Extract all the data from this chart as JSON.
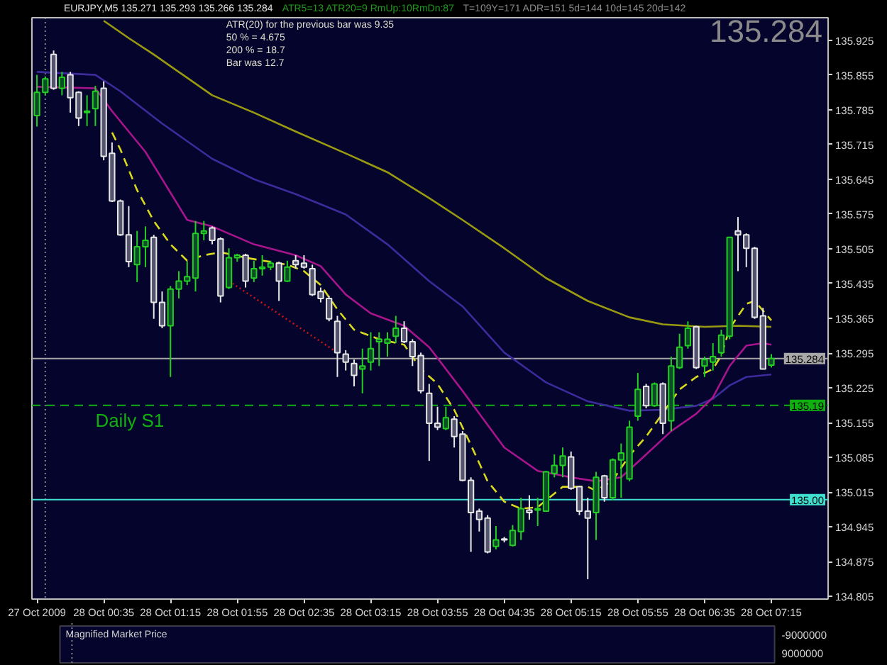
{
  "chart_data": {
    "type": "candlestick",
    "title": "EURJPY,M5  135.271 135.293 135.266 135.284",
    "x": [
      "2009-10-27T23:55",
      "2009-10-28T00:00",
      "2009-10-28T00:05",
      "2009-10-28T00:10",
      "2009-10-28T00:15",
      "2009-10-28T00:20",
      "2009-10-28T00:25",
      "2009-10-28T00:30",
      "2009-10-28T00:35",
      "2009-10-28T00:40",
      "2009-10-28T00:45",
      "2009-10-28T00:50",
      "2009-10-28T00:55",
      "2009-10-28T01:00",
      "2009-10-28T01:05",
      "2009-10-28T01:10",
      "2009-10-28T01:15",
      "2009-10-28T01:20",
      "2009-10-28T01:25",
      "2009-10-28T01:30",
      "2009-10-28T01:35",
      "2009-10-28T01:40",
      "2009-10-28T01:45",
      "2009-10-28T01:50",
      "2009-10-28T01:55",
      "2009-10-28T02:00",
      "2009-10-28T02:05",
      "2009-10-28T02:10",
      "2009-10-28T02:15",
      "2009-10-28T02:20",
      "2009-10-28T02:25",
      "2009-10-28T02:30",
      "2009-10-28T02:35",
      "2009-10-28T02:40",
      "2009-10-28T02:45",
      "2009-10-28T02:50",
      "2009-10-28T02:55",
      "2009-10-28T03:00",
      "2009-10-28T03:05",
      "2009-10-28T03:10",
      "2009-10-28T03:15",
      "2009-10-28T03:20",
      "2009-10-28T03:25",
      "2009-10-28T03:30",
      "2009-10-28T03:35",
      "2009-10-28T03:40",
      "2009-10-28T03:45",
      "2009-10-28T03:50",
      "2009-10-28T03:55",
      "2009-10-28T04:00",
      "2009-10-28T04:05",
      "2009-10-28T04:10",
      "2009-10-28T04:15",
      "2009-10-28T04:20",
      "2009-10-28T04:25",
      "2009-10-28T04:30",
      "2009-10-28T04:35",
      "2009-10-28T04:40",
      "2009-10-28T04:45",
      "2009-10-28T04:50",
      "2009-10-28T04:55",
      "2009-10-28T05:00",
      "2009-10-28T05:05",
      "2009-10-28T05:10",
      "2009-10-28T05:15",
      "2009-10-28T05:20",
      "2009-10-28T05:25",
      "2009-10-28T05:30",
      "2009-10-28T05:35",
      "2009-10-28T05:40",
      "2009-10-28T05:45",
      "2009-10-28T05:50",
      "2009-10-28T05:55",
      "2009-10-28T06:00",
      "2009-10-28T06:05",
      "2009-10-28T06:10",
      "2009-10-28T06:15",
      "2009-10-28T06:20",
      "2009-10-28T06:25",
      "2009-10-28T06:30",
      "2009-10-28T06:35",
      "2009-10-28T06:40",
      "2009-10-28T06:45",
      "2009-10-28T06:50",
      "2009-10-28T06:55",
      "2009-10-28T07:00",
      "2009-10-28T07:05",
      "2009-10-28T07:10",
      "2009-10-28T07:15"
    ],
    "ohlc": [
      [
        135.773,
        135.855,
        135.751,
        135.82
      ],
      [
        135.82,
        135.852,
        135.814,
        135.847
      ],
      [
        135.896,
        135.904,
        135.825,
        135.828
      ],
      [
        135.828,
        135.861,
        135.814,
        135.85
      ],
      [
        135.855,
        135.861,
        135.779,
        135.809
      ],
      [
        135.82,
        135.822,
        135.752,
        135.768
      ],
      [
        135.779,
        135.814,
        135.752,
        135.782
      ],
      [
        135.787,
        135.833,
        135.752,
        135.822
      ],
      [
        135.828,
        135.842,
        135.683,
        135.691
      ],
      [
        135.697,
        135.719,
        135.599,
        135.601
      ],
      [
        135.601,
        135.604,
        135.531,
        135.533
      ],
      [
        135.533,
        135.591,
        135.468,
        135.479
      ],
      [
        135.473,
        135.541,
        135.438,
        135.509
      ],
      [
        135.509,
        135.55,
        135.468,
        135.522
      ],
      [
        135.528,
        135.533,
        135.364,
        135.397
      ],
      [
        135.397,
        135.419,
        135.345,
        135.35
      ],
      [
        135.35,
        135.43,
        135.247,
        135.424
      ],
      [
        135.424,
        135.46,
        135.405,
        135.44
      ],
      [
        135.44,
        135.479,
        135.432,
        135.449
      ],
      [
        135.446,
        135.561,
        135.419,
        135.536
      ],
      [
        135.536,
        135.561,
        135.522,
        135.541
      ],
      [
        135.547,
        135.55,
        135.514,
        135.522
      ],
      [
        135.525,
        135.528,
        135.397,
        135.41
      ],
      [
        135.427,
        135.506,
        135.424,
        135.487
      ],
      [
        135.487,
        135.495,
        135.479,
        135.492
      ],
      [
        135.492,
        135.495,
        135.427,
        135.44
      ],
      [
        135.446,
        135.481,
        135.438,
        135.465
      ],
      [
        135.465,
        135.492,
        135.451,
        135.468
      ],
      [
        135.468,
        135.481,
        135.462,
        135.476
      ],
      [
        135.476,
        135.479,
        135.4,
        135.44
      ],
      [
        135.44,
        135.481,
        135.438,
        135.468
      ],
      [
        135.481,
        135.492,
        135.465,
        135.473
      ],
      [
        135.476,
        135.492,
        135.465,
        135.468
      ],
      [
        135.465,
        135.473,
        135.41,
        135.413
      ],
      [
        135.419,
        135.427,
        135.397,
        135.405
      ],
      [
        135.405,
        135.41,
        135.359,
        135.364
      ],
      [
        135.359,
        135.37,
        135.247,
        135.296
      ],
      [
        135.293,
        135.301,
        135.26,
        135.277
      ],
      [
        135.274,
        135.282,
        135.228,
        135.25
      ],
      [
        135.263,
        135.304,
        135.214,
        135.269
      ],
      [
        135.277,
        135.337,
        135.26,
        135.304
      ],
      [
        135.318,
        135.337,
        135.269,
        135.323
      ],
      [
        135.315,
        135.337,
        135.288,
        135.323
      ],
      [
        135.329,
        135.37,
        135.315,
        135.345
      ],
      [
        135.345,
        135.359,
        135.315,
        135.318
      ],
      [
        135.318,
        135.323,
        135.269,
        135.288
      ],
      [
        135.29,
        135.296,
        135.214,
        135.219
      ],
      [
        135.214,
        135.233,
        135.078,
        135.154
      ],
      [
        135.154,
        135.187,
        135.14,
        135.146
      ],
      [
        135.143,
        135.187,
        135.14,
        135.165
      ],
      [
        135.162,
        135.168,
        135.105,
        135.127
      ],
      [
        135.132,
        135.138,
        135.037,
        135.039
      ],
      [
        135.039,
        135.045,
        134.895,
        134.974
      ],
      [
        134.977,
        134.982,
        134.936,
        134.96
      ],
      [
        134.963,
        134.969,
        134.892,
        134.895
      ],
      [
        134.906,
        134.947,
        134.9,
        134.919
      ],
      [
        134.921,
        134.925,
        134.914,
        134.919
      ],
      [
        134.908,
        134.949,
        134.906,
        134.938
      ],
      [
        134.936,
        135.004,
        134.919,
        134.982
      ],
      [
        134.979,
        135.009,
        134.96,
        134.974
      ],
      [
        134.979,
        135.004,
        134.947,
        134.982
      ],
      [
        134.977,
        135.058,
        134.977,
        135.056
      ],
      [
        135.053,
        135.091,
        135.045,
        135.069
      ],
      [
        135.069,
        135.105,
        135.045,
        135.088
      ],
      [
        135.086,
        135.097,
        135.02,
        135.023
      ],
      [
        135.026,
        135.028,
        134.969,
        134.977
      ],
      [
        134.977,
        135.004,
        134.84,
        134.963
      ],
      [
        134.974,
        135.056,
        134.919,
        135.045
      ],
      [
        135.048,
        135.05,
        134.996,
        135.004
      ],
      [
        135.004,
        135.083,
        134.999,
        135.08
      ],
      [
        135.08,
        135.113,
        135.004,
        135.094
      ],
      [
        135.042,
        135.159,
        135.037,
        135.146
      ],
      [
        135.168,
        135.255,
        135.159,
        135.222
      ],
      [
        135.228,
        135.233,
        135.184,
        135.189
      ],
      [
        135.189,
        135.236,
        135.187,
        135.233
      ],
      [
        135.233,
        135.236,
        135.132,
        135.154
      ],
      [
        135.159,
        135.288,
        135.138,
        135.269
      ],
      [
        135.266,
        135.334,
        135.263,
        135.307
      ],
      [
        135.31,
        135.359,
        135.304,
        135.345
      ],
      [
        135.348,
        135.35,
        135.263,
        135.266
      ],
      [
        135.269,
        135.288,
        135.247,
        135.282
      ],
      [
        135.277,
        135.315,
        135.26,
        135.288
      ],
      [
        135.296,
        135.342,
        135.288,
        135.331
      ],
      [
        135.329,
        135.528,
        135.323,
        135.528
      ],
      [
        135.541,
        135.569,
        135.46,
        135.533
      ],
      [
        135.533,
        135.536,
        135.468,
        135.506
      ],
      [
        135.506,
        135.509,
        135.364,
        135.367
      ],
      [
        135.37,
        135.386,
        135.263,
        135.263
      ],
      [
        135.271,
        135.293,
        135.266,
        135.284
      ]
    ],
    "colors": [
      "#22d022",
      "#22d022",
      "#e8e8e8",
      "#22d022",
      "#e8e8e8",
      "#e8e8e8",
      "#22d022",
      "#22d022",
      "#e8e8e8",
      "#e8e8e8",
      "#e8e8e8",
      "#e8e8e8",
      "#22d022",
      "#22d022",
      "#e8e8e8",
      "#e8e8e8",
      "#22d022",
      "#22d022",
      "#22d022",
      "#22d022",
      "#22d022",
      "#e8e8e8",
      "#e8e8e8",
      "#22d022",
      "#22d022",
      "#e8e8e8",
      "#22d022",
      "#22d022",
      "#22d022",
      "#e8e8e8",
      "#22d022",
      "#e8e8e8",
      "#e8e8e8",
      "#e8e8e8",
      "#e8e8e8",
      "#e8e8e8",
      "#e8e8e8",
      "#e8e8e8",
      "#e8e8e8",
      "#22d022",
      "#22d022",
      "#22d022",
      "#22d022",
      "#22d022",
      "#e8e8e8",
      "#e8e8e8",
      "#e8e8e8",
      "#e8e8e8",
      "#e8e8e8",
      "#22d022",
      "#e8e8e8",
      "#e8e8e8",
      "#e8e8e8",
      "#e8e8e8",
      "#e8e8e8",
      "#22d022",
      "#e8e8e8",
      "#22d022",
      "#22d022",
      "#e8e8e8",
      "#22d022",
      "#22d022",
      "#22d022",
      "#22d022",
      "#e8e8e8",
      "#e8e8e8",
      "#e8e8e8",
      "#22d022",
      "#e8e8e8",
      "#22d022",
      "#22d022",
      "#22d022",
      "#22d022",
      "#e8e8e8",
      "#22d022",
      "#e8e8e8",
      "#22d022",
      "#22d022",
      "#22d022",
      "#e8e8e8",
      "#22d022",
      "#22d022",
      "#22d022",
      "#22d022",
      "#e8e8e8",
      "#e8e8e8",
      "#e8e8e8",
      "#e8e8e8",
      "#22d022"
    ],
    "series": [
      {
        "type": "line",
        "color": "#9a9a12",
        "x": [
          "2009-10-28T00:35",
          "2009-10-28T00:50",
          "2009-10-28T01:05",
          "2009-10-28T01:40",
          "2009-10-28T02:05",
          "2009-10-28T02:30",
          "2009-10-28T03:00",
          "2009-10-28T03:25",
          "2009-10-28T03:50",
          "2009-10-28T04:10",
          "2009-10-28T04:35",
          "2009-10-28T05:00",
          "2009-10-28T05:25",
          "2009-10-28T05:50",
          "2009-10-28T06:10",
          "2009-10-28T06:35",
          "2009-10-28T06:55",
          "2009-10-28T07:15"
        ],
        "values": [
          135.964,
          135.929,
          135.896,
          135.814,
          135.779,
          135.741,
          135.697,
          135.659,
          135.607,
          135.563,
          135.506,
          135.446,
          135.4,
          135.367,
          135.353,
          135.348,
          135.35,
          135.348
        ]
      },
      {
        "type": "line",
        "color": "#3d2b9c",
        "x": [
          "2009-10-27T23:55",
          "2009-10-28T00:30",
          "2009-10-28T00:45",
          "2009-10-28T01:10",
          "2009-10-28T01:40",
          "2009-10-28T02:05",
          "2009-10-28T02:30",
          "2009-10-28T03:00",
          "2009-10-28T03:25",
          "2009-10-28T03:50",
          "2009-10-28T04:10",
          "2009-10-28T04:35",
          "2009-10-28T05:00",
          "2009-10-28T05:25",
          "2009-10-28T05:50",
          "2009-10-28T06:10",
          "2009-10-28T06:30",
          "2009-10-28T06:40",
          "2009-10-28T06:50",
          "2009-10-28T07:00",
          "2009-10-28T07:15"
        ],
        "values": [
          135.861,
          135.855,
          135.822,
          135.757,
          135.686,
          135.645,
          135.615,
          135.574,
          135.514,
          135.44,
          135.389,
          135.296,
          135.236,
          135.198,
          135.179,
          135.181,
          135.189,
          135.203,
          135.23,
          135.247,
          135.252
        ]
      },
      {
        "type": "line",
        "color": "#a8148c",
        "x": [
          "2009-10-27T23:55",
          "2009-10-28T00:30",
          "2009-10-28T00:40",
          "2009-10-28T01:00",
          "2009-10-28T01:15",
          "2009-10-28T01:25",
          "2009-10-28T01:40",
          "2009-10-28T02:05",
          "2009-10-28T02:30",
          "2009-10-28T02:45",
          "2009-10-28T03:00",
          "2009-10-28T03:15",
          "2009-10-28T03:35",
          "2009-10-28T03:50",
          "2009-10-28T04:10",
          "2009-10-28T04:35",
          "2009-10-28T04:55",
          "2009-10-28T05:15",
          "2009-10-28T05:30",
          "2009-10-28T05:45",
          "2009-10-28T06:00",
          "2009-10-28T06:15",
          "2009-10-28T06:30",
          "2009-10-28T06:40",
          "2009-10-28T06:50",
          "2009-10-28T07:00",
          "2009-10-28T07:10",
          "2009-10-28T07:15"
        ],
        "values": [
          135.831,
          135.828,
          135.782,
          135.7,
          135.618,
          135.563,
          135.55,
          135.514,
          135.492,
          135.47,
          135.413,
          135.375,
          135.35,
          135.307,
          135.219,
          135.105,
          135.058,
          135.045,
          135.037,
          135.045,
          135.091,
          135.138,
          135.173,
          135.206,
          135.269,
          135.31,
          135.315,
          135.312
        ]
      },
      {
        "type": "line",
        "color": "#d8d820",
        "line_style": "dashed",
        "x": [
          "2009-10-28T00:40",
          "2009-10-28T00:45",
          "2009-10-28T00:55",
          "2009-10-28T01:05",
          "2009-10-28T01:15",
          "2009-10-28T01:25",
          "2009-10-28T01:35",
          "2009-10-28T01:45",
          "2009-10-28T02:00",
          "2009-10-28T02:25",
          "2009-10-28T02:35",
          "2009-10-28T02:45",
          "2009-10-28T02:55",
          "2009-10-28T03:05",
          "2009-10-28T03:20",
          "2009-10-28T03:35",
          "2009-10-28T03:45",
          "2009-10-28T03:55",
          "2009-10-28T04:05",
          "2009-10-28T04:15",
          "2009-10-28T04:25",
          "2009-10-28T04:35",
          "2009-10-28T04:45",
          "2009-10-28T04:55",
          "2009-10-28T05:10",
          "2009-10-28T05:25",
          "2009-10-28T05:30",
          "2009-10-28T05:40",
          "2009-10-28T05:50",
          "2009-10-28T06:00",
          "2009-10-28T06:20",
          "2009-10-28T06:30",
          "2009-10-28T06:40",
          "2009-10-28T06:45",
          "2009-10-28T06:50",
          "2009-10-28T07:00",
          "2009-10-28T07:05",
          "2009-10-28T07:15"
        ],
        "values": [
          135.739,
          135.705,
          135.623,
          135.561,
          135.514,
          135.481,
          135.492,
          135.498,
          135.487,
          135.473,
          135.46,
          135.432,
          135.383,
          135.342,
          135.323,
          135.312,
          135.263,
          135.233,
          135.181,
          135.11,
          135.037,
          134.996,
          134.982,
          134.985,
          135.026,
          135.026,
          135.018,
          135.039,
          135.089,
          135.127,
          135.222,
          135.247,
          135.263,
          135.29,
          135.345,
          135.394,
          135.4,
          135.361
        ]
      },
      {
        "type": "line",
        "color": "#c81414",
        "line_style": "dotted",
        "x": [
          "2009-10-28T01:50",
          "2009-10-28T02:55"
        ],
        "values": [
          135.44,
          135.296
        ]
      }
    ],
    "xlim": [
      "2009-10-27T23:52",
      "2009-10-28T07:49"
    ],
    "xticks": [
      {
        "value": "2009-10-27T23:55",
        "label": "27 Oct 2009"
      },
      {
        "value": "2009-10-28T00:35",
        "label": "28 Oct 00:35"
      },
      {
        "value": "2009-10-28T01:15",
        "label": "28 Oct 01:15"
      },
      {
        "value": "2009-10-28T01:55",
        "label": "28 Oct 01:55"
      },
      {
        "value": "2009-10-28T02:35",
        "label": "28 Oct 02:35"
      },
      {
        "value": "2009-10-28T03:15",
        "label": "28 Oct 03:15"
      },
      {
        "value": "2009-10-28T03:55",
        "label": "28 Oct 03:55"
      },
      {
        "value": "2009-10-28T04:35",
        "label": "28 Oct 04:35"
      },
      {
        "value": "2009-10-28T05:15",
        "label": "28 Oct 05:15"
      },
      {
        "value": "2009-10-28T05:55",
        "label": "28 Oct 05:55"
      },
      {
        "value": "2009-10-28T06:35",
        "label": "28 Oct 06:35"
      },
      {
        "value": "2009-10-28T07:15",
        "label": "28 Oct 07:15"
      }
    ],
    "ylim": [
      134.8,
      135.97
    ],
    "yticks": [
      134.805,
      134.875,
      134.945,
      135.015,
      135.085,
      135.155,
      135.225,
      135.295,
      135.365,
      135.435,
      135.505,
      135.575,
      135.645,
      135.715,
      135.785,
      135.855,
      135.925
    ],
    "ref_lines": [
      {
        "axis": "x",
        "value": "2009-10-28T00:00",
        "color": "#808080",
        "line_style": "dotted"
      },
      {
        "axis": "y",
        "value": 135.284,
        "label": "135.284",
        "color": "#a8a8a8"
      },
      {
        "axis": "y",
        "value": 135.19,
        "label": "135.19",
        "color": "#10b010",
        "line_style": "dashed"
      },
      {
        "axis": "y",
        "value": 135.0,
        "label": "135.00",
        "color": "#40e0d0"
      }
    ],
    "annotations": [
      "ATR(20) for the previous bar was 9.35",
      "50 % = 4.675",
      "200 % = 18.7",
      "Bar was 12.7",
      "ATR5=13  ATR20=9  RmUp:10RmDn:87",
      "T=109Y=171  ADR=151  5d=144  10d=145  20d=142",
      "135.284",
      "Magnified Market Price",
      "-9000000",
      "9000000",
      {
        "text": "Daily S1",
        "x": "2009-10-28T00:30",
        "y": 135.19
      }
    ]
  }
}
